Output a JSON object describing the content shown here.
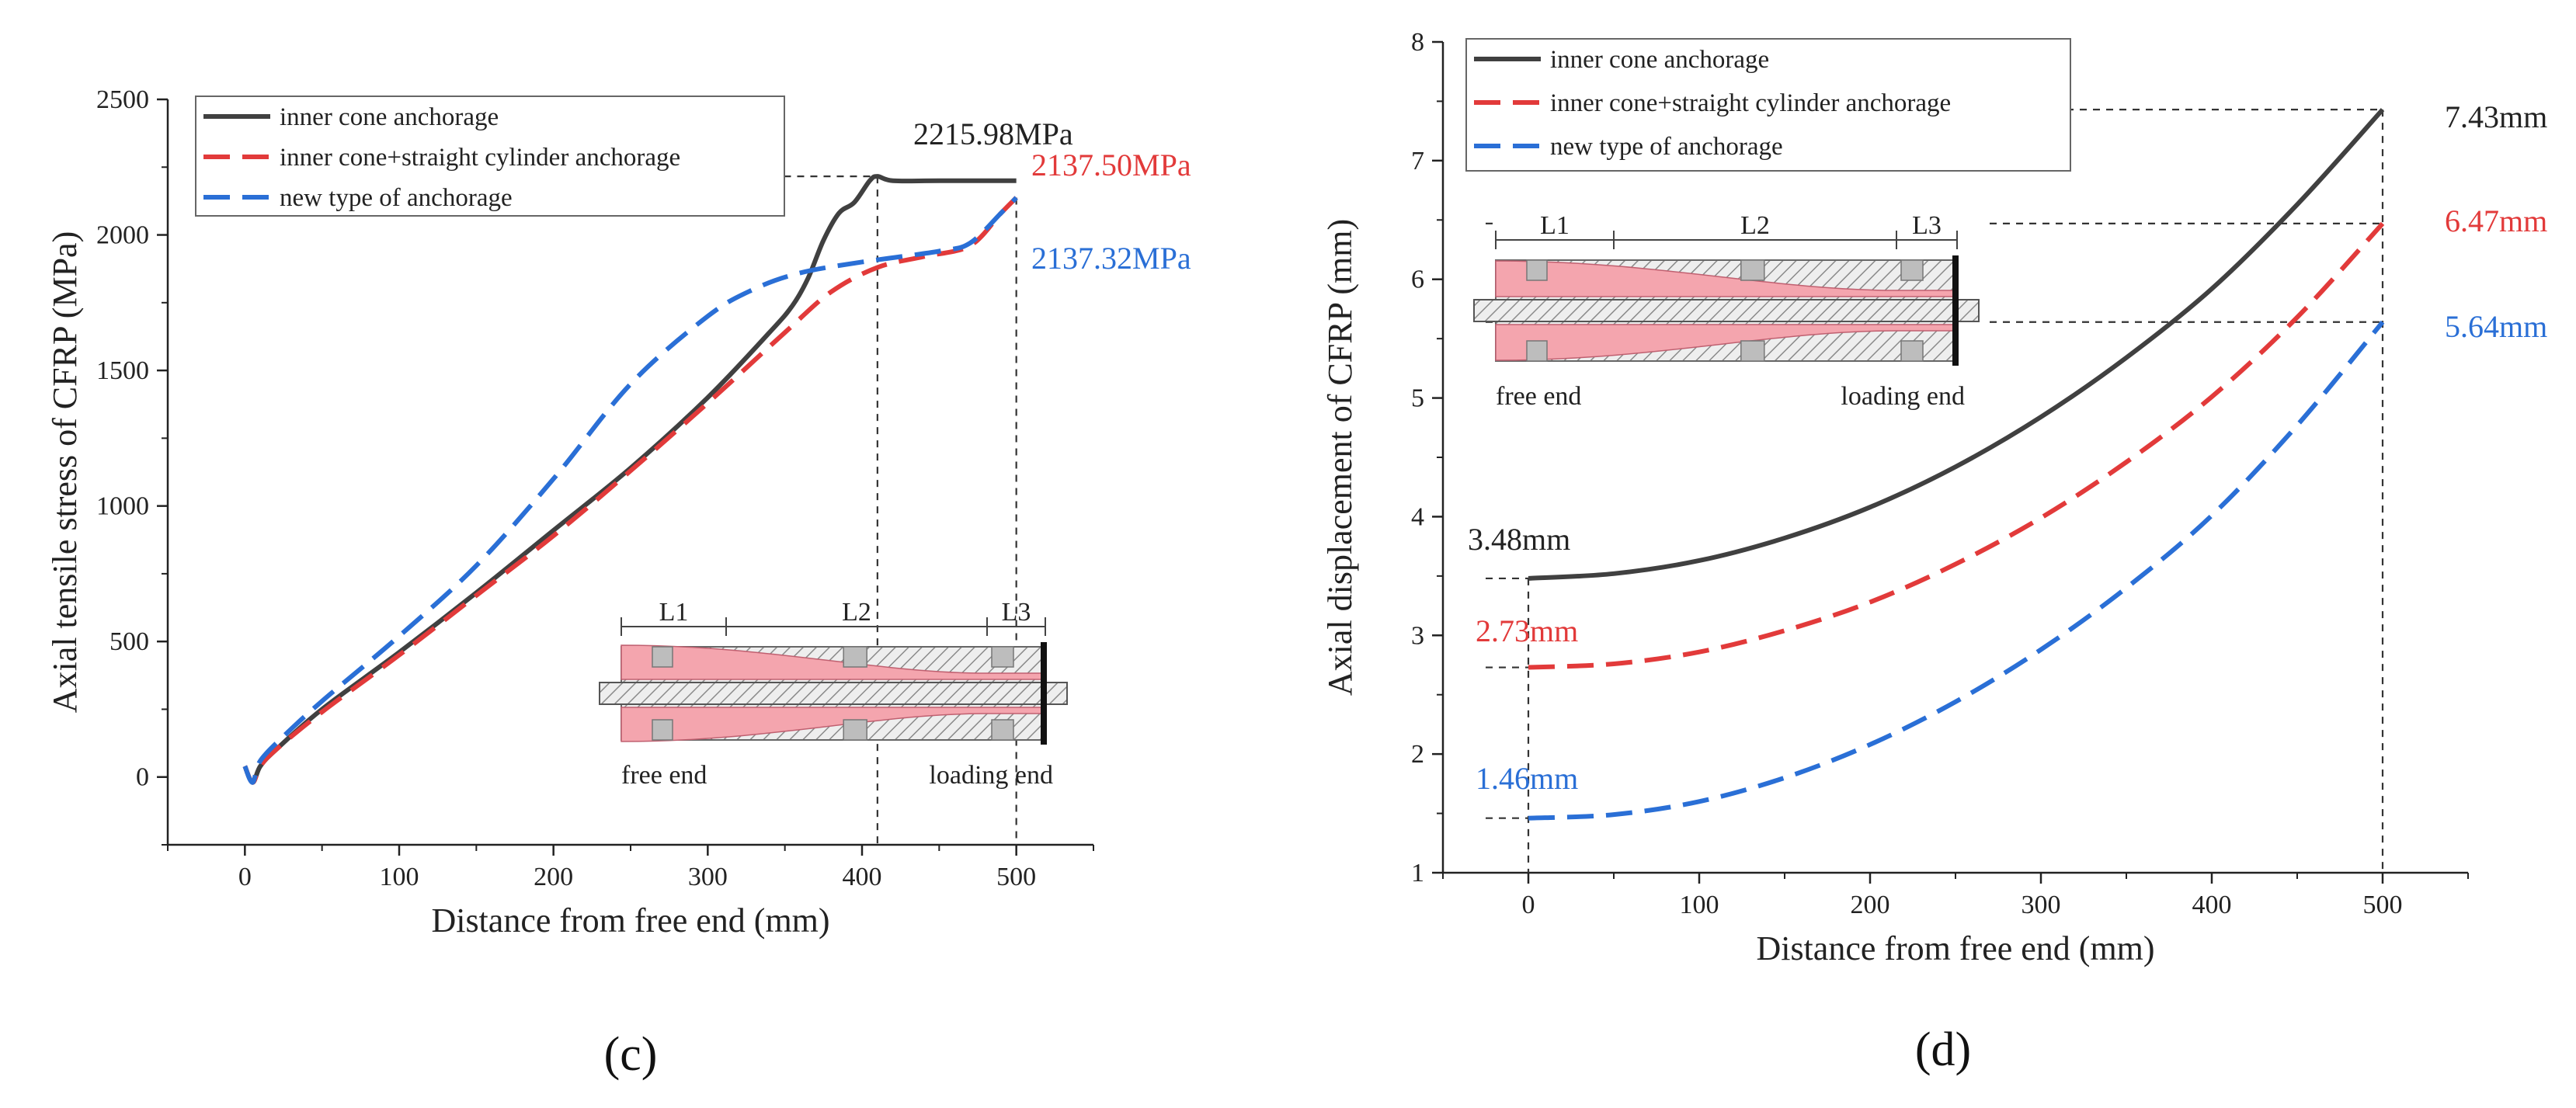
{
  "colors": {
    "inner": "#404040",
    "straight": "#e23a3a",
    "new": "#2a6fd6",
    "pink": "#f4a5ae",
    "hatch": "#777777"
  },
  "chart_data": [
    {
      "type": "line",
      "panel_label": "(c)",
      "title": "",
      "xlabel": "Distance from free end (mm)",
      "ylabel": "Axial tensile stress of CFRP (MPa)",
      "xlim": [
        -50,
        550
      ],
      "ylim": [
        -250,
        2500
      ],
      "xticks": [
        "0",
        "100",
        "200",
        "300",
        "400",
        "500"
      ],
      "yticks": [
        "0",
        "500",
        "1000",
        "1500",
        "2000",
        "2500"
      ],
      "legend": [
        "inner cone anchorage",
        "inner cone+straight cylinder anchorage",
        "new type of anchorage"
      ],
      "series": [
        {
          "name": "inner cone anchorage",
          "color": "#404040",
          "dash": false,
          "x": [
            0,
            5,
            10,
            20,
            50,
            100,
            150,
            200,
            250,
            300,
            340,
            355,
            365,
            375,
            385,
            395,
            405,
            410,
            420,
            450,
            500
          ],
          "y": [
            40,
            -20,
            40,
            100,
            250,
            460,
            680,
            910,
            1140,
            1400,
            1640,
            1740,
            1840,
            1980,
            2080,
            2120,
            2200,
            2215.98,
            2200,
            2200,
            2200
          ]
        },
        {
          "name": "inner cone+straight cylinder anchorage",
          "color": "#e23a3a",
          "dash": true,
          "x": [
            0,
            5,
            10,
            20,
            50,
            100,
            150,
            200,
            250,
            300,
            350,
            380,
            410,
            440,
            470,
            490,
            500
          ],
          "y": [
            40,
            -20,
            40,
            100,
            240,
            450,
            670,
            890,
            1130,
            1380,
            1640,
            1790,
            1880,
            1920,
            1960,
            2080,
            2137.5
          ]
        },
        {
          "name": "new type of anchorage",
          "color": "#2a6fd6",
          "dash": true,
          "x": [
            0,
            5,
            10,
            25,
            50,
            100,
            150,
            200,
            250,
            300,
            330,
            360,
            400,
            450,
            470,
            490,
            500
          ],
          "y": [
            40,
            -20,
            60,
            150,
            280,
            520,
            780,
            1100,
            1450,
            1700,
            1800,
            1860,
            1900,
            1940,
            1970,
            2080,
            2137.32
          ]
        }
      ],
      "annotations": [
        {
          "text": "2215.98MPa",
          "color": "#222222",
          "x": 410,
          "y": 2215.98
        },
        {
          "text": "2137.50MPa",
          "color": "#e23a3a",
          "x": 500,
          "y": 2137.5
        },
        {
          "text": "2137.32MPa",
          "color": "#2a6fd6",
          "x": 500,
          "y": 2137.32
        }
      ],
      "inset": {
        "segments": [
          "L1",
          "L2",
          "L3"
        ],
        "free_end": "free end",
        "loading_end": "loading end"
      }
    },
    {
      "type": "line",
      "panel_label": "(d)",
      "title": "",
      "xlabel": "Distance from free end (mm)",
      "ylabel": "Axial displacement of CFRP (mm)",
      "xlim": [
        -50,
        550
      ],
      "ylim": [
        1,
        8
      ],
      "xticks": [
        "0",
        "100",
        "200",
        "300",
        "400",
        "500"
      ],
      "yticks": [
        "1",
        "2",
        "3",
        "4",
        "5",
        "6",
        "7",
        "8"
      ],
      "legend": [
        "inner cone anchorage",
        "inner cone+straight cylinder anchorage",
        "new type of anchorage"
      ],
      "series": [
        {
          "name": "inner cone anchorage",
          "color": "#404040",
          "dash": false,
          "x": [
            0,
            50,
            100,
            150,
            200,
            250,
            300,
            350,
            400,
            450,
            500
          ],
          "y": [
            3.48,
            3.52,
            3.63,
            3.82,
            4.08,
            4.42,
            4.84,
            5.34,
            5.92,
            6.63,
            7.43
          ]
        },
        {
          "name": "inner cone+straight cylinder anchorage",
          "color": "#e23a3a",
          "dash": true,
          "x": [
            0,
            50,
            100,
            150,
            200,
            250,
            300,
            350,
            400,
            450,
            500
          ],
          "y": [
            2.73,
            2.76,
            2.86,
            3.04,
            3.28,
            3.6,
            3.99,
            4.46,
            5.01,
            5.68,
            6.47
          ]
        },
        {
          "name": "new type of anchorage",
          "color": "#2a6fd6",
          "dash": true,
          "x": [
            0,
            50,
            100,
            150,
            200,
            250,
            300,
            350,
            400,
            450,
            500
          ],
          "y": [
            1.46,
            1.49,
            1.6,
            1.8,
            2.08,
            2.44,
            2.88,
            3.4,
            4.01,
            4.77,
            5.64
          ]
        }
      ],
      "annotations": [
        {
          "text": "3.48mm",
          "color": "#222222",
          "x": 0,
          "y": 3.48
        },
        {
          "text": "2.73mm",
          "color": "#e23a3a",
          "x": 0,
          "y": 2.73
        },
        {
          "text": "1.46mm",
          "color": "#2a6fd6",
          "x": 0,
          "y": 1.46
        },
        {
          "text": "7.43mm",
          "color": "#222222",
          "x": 500,
          "y": 7.43
        },
        {
          "text": "6.47mm",
          "color": "#e23a3a",
          "x": 500,
          "y": 6.47
        },
        {
          "text": "5.64mm",
          "color": "#2a6fd6",
          "x": 500,
          "y": 5.64
        }
      ],
      "inset": {
        "segments": [
          "L1",
          "L2",
          "L3"
        ],
        "free_end": "free end",
        "loading_end": "loading end"
      }
    }
  ]
}
